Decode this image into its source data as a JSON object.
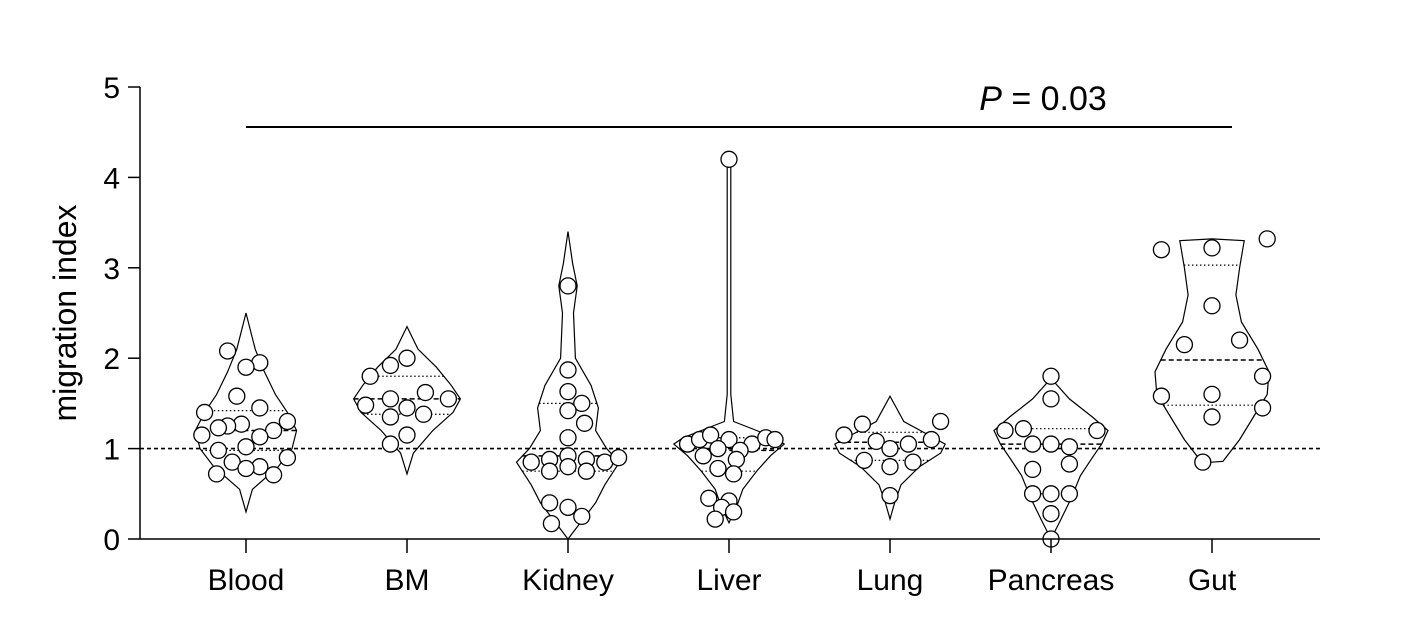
{
  "chart_data": {
    "type": "violin",
    "ylabel": "migration index",
    "ylim": [
      0,
      5
    ],
    "yticks": [
      0,
      1,
      2,
      3,
      4,
      5
    ],
    "reference_line": 1,
    "annotation": {
      "p_label": "P",
      "p_text": " = 0.03"
    },
    "categories": [
      {
        "label": "Blood",
        "min": 0.3,
        "max": 2.5,
        "median": 1.2,
        "q1": 0.98,
        "q3": 1.42,
        "shape": [
          [
            0.3,
            0.0
          ],
          [
            0.55,
            0.07
          ],
          [
            0.8,
            0.35
          ],
          [
            1.0,
            0.5
          ],
          [
            1.2,
            0.55
          ],
          [
            1.4,
            0.45
          ],
          [
            1.6,
            0.32
          ],
          [
            1.85,
            0.2
          ],
          [
            2.1,
            0.1
          ],
          [
            2.5,
            0.0
          ]
        ],
        "points": [
          [
            -0.2,
            2.08
          ],
          [
            0.15,
            1.95
          ],
          [
            0.0,
            1.9
          ],
          [
            -0.1,
            1.58
          ],
          [
            0.15,
            1.45
          ],
          [
            -0.45,
            1.4
          ],
          [
            0.45,
            1.3
          ],
          [
            -0.05,
            1.27
          ],
          [
            -0.2,
            1.25
          ],
          [
            0.3,
            1.2
          ],
          [
            -0.3,
            1.23
          ],
          [
            -0.48,
            1.15
          ],
          [
            0.15,
            1.13
          ],
          [
            0.0,
            1.02
          ],
          [
            -0.3,
            0.98
          ],
          [
            0.45,
            0.9
          ],
          [
            -0.15,
            0.85
          ],
          [
            0.15,
            0.8
          ],
          [
            0.0,
            0.78
          ],
          [
            -0.32,
            0.72
          ],
          [
            0.3,
            0.71
          ]
        ]
      },
      {
        "label": "BM",
        "min": 0.72,
        "max": 2.35,
        "median": 1.55,
        "q1": 1.38,
        "q3": 1.8,
        "shape": [
          [
            0.72,
            0.0
          ],
          [
            0.95,
            0.07
          ],
          [
            1.2,
            0.28
          ],
          [
            1.4,
            0.5
          ],
          [
            1.55,
            0.58
          ],
          [
            1.7,
            0.48
          ],
          [
            1.9,
            0.32
          ],
          [
            2.1,
            0.12
          ],
          [
            2.35,
            0.0
          ]
        ],
        "points": [
          [
            0.0,
            2.0
          ],
          [
            -0.18,
            1.92
          ],
          [
            -0.4,
            1.8
          ],
          [
            0.2,
            1.62
          ],
          [
            -0.18,
            1.55
          ],
          [
            0.45,
            1.55
          ],
          [
            -0.45,
            1.48
          ],
          [
            0.0,
            1.45
          ],
          [
            -0.18,
            1.35
          ],
          [
            0.18,
            1.38
          ],
          [
            0.0,
            1.15
          ],
          [
            -0.18,
            1.05
          ]
        ]
      },
      {
        "label": "Kidney",
        "min": 0.0,
        "max": 3.4,
        "median": 0.92,
        "q1": 0.75,
        "q3": 1.5,
        "shape": [
          [
            0.0,
            0.0
          ],
          [
            0.2,
            0.15
          ],
          [
            0.4,
            0.3
          ],
          [
            0.6,
            0.4
          ],
          [
            0.85,
            0.56
          ],
          [
            1.0,
            0.42
          ],
          [
            1.2,
            0.3
          ],
          [
            1.45,
            0.33
          ],
          [
            1.7,
            0.25
          ],
          [
            2.0,
            0.08
          ],
          [
            2.5,
            0.06
          ],
          [
            2.8,
            0.1
          ],
          [
            3.05,
            0.05
          ],
          [
            3.4,
            0.0
          ]
        ],
        "points": [
          [
            0.0,
            2.8
          ],
          [
            0.0,
            1.87
          ],
          [
            0.0,
            1.63
          ],
          [
            0.15,
            1.5
          ],
          [
            0.0,
            1.42
          ],
          [
            0.18,
            1.28
          ],
          [
            0.0,
            1.12
          ],
          [
            0.0,
            0.92
          ],
          [
            -0.2,
            0.88
          ],
          [
            0.2,
            0.88
          ],
          [
            -0.4,
            0.85
          ],
          [
            0.4,
            0.85
          ],
          [
            0.55,
            0.9
          ],
          [
            0.0,
            0.8
          ],
          [
            -0.2,
            0.75
          ],
          [
            0.2,
            0.75
          ],
          [
            -0.2,
            0.4
          ],
          [
            0.0,
            0.35
          ],
          [
            0.15,
            0.25
          ],
          [
            -0.18,
            0.17
          ]
        ]
      },
      {
        "label": "Liver",
        "min": 0.18,
        "max": 4.22,
        "median": 0.98,
        "q1": 0.75,
        "q3": 1.12,
        "shape": [
          [
            0.18,
            0.0
          ],
          [
            0.35,
            0.08
          ],
          [
            0.55,
            0.15
          ],
          [
            0.75,
            0.3
          ],
          [
            0.92,
            0.45
          ],
          [
            1.05,
            0.6
          ],
          [
            1.12,
            0.5
          ],
          [
            1.2,
            0.3
          ],
          [
            1.3,
            0.05
          ],
          [
            1.6,
            0.02
          ],
          [
            2.5,
            0.02
          ],
          [
            3.5,
            0.02
          ],
          [
            4.15,
            0.02
          ],
          [
            4.22,
            0.0
          ]
        ],
        "points": [
          [
            0.0,
            4.2
          ],
          [
            -0.45,
            1.05
          ],
          [
            -0.32,
            1.1
          ],
          [
            -0.2,
            1.15
          ],
          [
            0.0,
            1.1
          ],
          [
            0.25,
            1.05
          ],
          [
            0.4,
            1.12
          ],
          [
            0.5,
            1.1
          ],
          [
            -0.12,
            1.0
          ],
          [
            0.12,
            0.98
          ],
          [
            -0.28,
            0.92
          ],
          [
            0.08,
            0.88
          ],
          [
            -0.12,
            0.78
          ],
          [
            0.05,
            0.72
          ],
          [
            -0.22,
            0.45
          ],
          [
            0.0,
            0.42
          ],
          [
            -0.08,
            0.35
          ],
          [
            0.05,
            0.3
          ],
          [
            -0.15,
            0.22
          ]
        ]
      },
      {
        "label": "Lung",
        "min": 0.22,
        "max": 1.58,
        "median": 1.07,
        "q1": 0.87,
        "q3": 1.18,
        "shape": [
          [
            0.22,
            0.0
          ],
          [
            0.4,
            0.05
          ],
          [
            0.6,
            0.12
          ],
          [
            0.8,
            0.32
          ],
          [
            0.95,
            0.55
          ],
          [
            1.05,
            0.6
          ],
          [
            1.15,
            0.42
          ],
          [
            1.3,
            0.15
          ],
          [
            1.45,
            0.07
          ],
          [
            1.58,
            0.0
          ]
        ],
        "points": [
          [
            -0.5,
            1.15
          ],
          [
            -0.3,
            1.27
          ],
          [
            0.55,
            1.3
          ],
          [
            -0.15,
            1.08
          ],
          [
            0.0,
            1.0
          ],
          [
            0.2,
            1.05
          ],
          [
            0.45,
            1.1
          ],
          [
            -0.28,
            0.87
          ],
          [
            0.0,
            0.8
          ],
          [
            0.25,
            0.85
          ],
          [
            0.0,
            0.48
          ]
        ]
      },
      {
        "label": "Pancreas",
        "min": 0.0,
        "max": 1.8,
        "median": 1.05,
        "q1": 0.5,
        "q3": 1.22,
        "shape": [
          [
            0.0,
            0.0
          ],
          [
            0.2,
            0.1
          ],
          [
            0.45,
            0.22
          ],
          [
            0.7,
            0.32
          ],
          [
            0.9,
            0.45
          ],
          [
            1.05,
            0.55
          ],
          [
            1.2,
            0.62
          ],
          [
            1.35,
            0.45
          ],
          [
            1.55,
            0.2
          ],
          [
            1.72,
            0.05
          ],
          [
            1.8,
            0.0
          ]
        ],
        "points": [
          [
            0.0,
            1.8
          ],
          [
            0.0,
            1.55
          ],
          [
            -0.3,
            1.22
          ],
          [
            -0.5,
            1.2
          ],
          [
            0.5,
            1.2
          ],
          [
            0.0,
            1.05
          ],
          [
            -0.2,
            1.05
          ],
          [
            0.2,
            1.02
          ],
          [
            0.2,
            0.83
          ],
          [
            -0.2,
            0.77
          ],
          [
            0.0,
            0.5
          ],
          [
            -0.2,
            0.5
          ],
          [
            0.2,
            0.5
          ],
          [
            0.0,
            0.28
          ],
          [
            0.0,
            0.0
          ]
        ]
      },
      {
        "label": "Gut",
        "min": 0.85,
        "max": 3.32,
        "median": 1.98,
        "q1": 1.48,
        "q3": 3.03,
        "shape": [
          [
            0.85,
            0.0
          ],
          [
            0.86,
            0.12
          ],
          [
            1.1,
            0.3
          ],
          [
            1.35,
            0.45
          ],
          [
            1.6,
            0.6
          ],
          [
            1.85,
            0.62
          ],
          [
            2.1,
            0.5
          ],
          [
            2.4,
            0.32
          ],
          [
            2.7,
            0.26
          ],
          [
            3.0,
            0.3
          ],
          [
            3.3,
            0.35
          ],
          [
            3.32,
            0.0
          ]
        ],
        "points": [
          [
            0.6,
            3.32
          ],
          [
            -0.55,
            3.2
          ],
          [
            0.0,
            3.22
          ],
          [
            0.0,
            2.58
          ],
          [
            0.3,
            2.2
          ],
          [
            -0.3,
            2.15
          ],
          [
            0.55,
            1.8
          ],
          [
            0.0,
            1.6
          ],
          [
            -0.55,
            1.58
          ],
          [
            0.55,
            1.45
          ],
          [
            0.0,
            1.35
          ],
          [
            -0.1,
            0.85
          ]
        ]
      }
    ]
  }
}
